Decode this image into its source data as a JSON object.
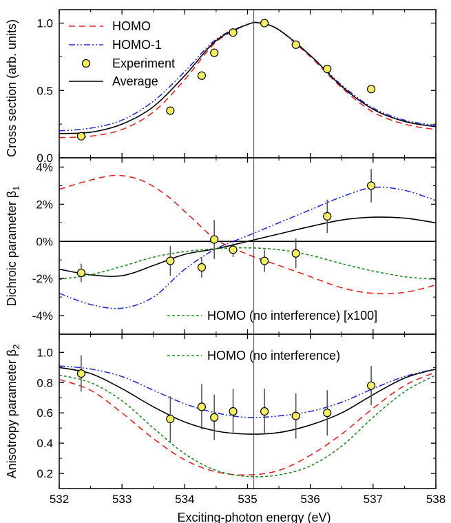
{
  "chart_data": {
    "type": "line",
    "xlabel": "Exciting-photon energy (eV)",
    "x_ticks": [
      "532",
      "533",
      "534",
      "535",
      "536",
      "537",
      "538"
    ],
    "xlim": [
      532,
      538
    ],
    "vline_x": 535.1,
    "panels": [
      {
        "id": "cross-section",
        "ylabel": "Cross section (arb. units)",
        "ylim": [
          0,
          1.1
        ],
        "y_ticks": [
          {
            "v": 0.0,
            "label": "0.0"
          },
          {
            "v": 0.5,
            "label": "0.5"
          },
          {
            "v": 1.0,
            "label": "1.0"
          }
        ],
        "zero_line": false,
        "series": [
          {
            "name": "HOMO",
            "color": "#e8201e",
            "dash": "9,6",
            "x": [
              532,
              532.5,
              533,
              533.5,
              534,
              534.5,
              535,
              535.2,
              535.5,
              536,
              536.5,
              537,
              537.5,
              538
            ],
            "y": [
              0.15,
              0.16,
              0.21,
              0.34,
              0.58,
              0.86,
              0.99,
              1.0,
              0.95,
              0.75,
              0.52,
              0.34,
              0.25,
              0.21
            ]
          },
          {
            "name": "HOMO-1",
            "color": "#1f2ed6",
            "dash": "9,3,2,3,2,3",
            "x": [
              532,
              532.5,
              533,
              533.5,
              534,
              534.5,
              535,
              535.2,
              535.5,
              536,
              536.5,
              537,
              537.5,
              538
            ],
            "y": [
              0.2,
              0.22,
              0.28,
              0.42,
              0.64,
              0.88,
              0.99,
              1.0,
              0.95,
              0.76,
              0.54,
              0.37,
              0.28,
              0.24
            ]
          },
          {
            "name": "Average",
            "color": "#000000",
            "dash": "",
            "x": [
              532,
              532.5,
              533,
              533.5,
              534,
              534.5,
              535,
              535.2,
              535.5,
              536,
              536.5,
              537,
              537.5,
              538
            ],
            "y": [
              0.18,
              0.19,
              0.25,
              0.38,
              0.61,
              0.87,
              0.99,
              1.0,
              0.95,
              0.76,
              0.53,
              0.36,
              0.27,
              0.23
            ]
          }
        ],
        "points": {
          "name": "Experiment",
          "x": [
            532.35,
            533.77,
            534.27,
            534.47,
            534.77,
            535.27,
            535.77,
            536.27,
            536.97
          ],
          "y": [
            0.16,
            0.35,
            0.61,
            0.78,
            0.93,
            1.0,
            0.84,
            0.66,
            0.51
          ],
          "err": []
        }
      },
      {
        "id": "beta1",
        "ylabel": "Dichroic parameter β₁",
        "ylabel_main": "Dichroic parameter β",
        "ylabel_sub": "1",
        "ylim": [
          -5,
          4.5
        ],
        "y_ticks": [
          {
            "v": -4,
            "label": "-4%"
          },
          {
            "v": -2,
            "label": "-2%"
          },
          {
            "v": 0,
            "label": "0%"
          },
          {
            "v": 2,
            "label": "2%"
          },
          {
            "v": 4,
            "label": "4%"
          }
        ],
        "zero_line": true,
        "series": [
          {
            "name": "HOMO",
            "color": "#e8201e",
            "dash": "9,6",
            "x": [
              532,
              532.5,
              532.9,
              533.3,
              533.7,
              534.1,
              534.5,
              535,
              535.5,
              536,
              536.5,
              537,
              537.5,
              538
            ],
            "y": [
              2.8,
              3.3,
              3.55,
              3.3,
              2.5,
              1.3,
              0.1,
              -0.7,
              -1.3,
              -1.9,
              -2.5,
              -2.8,
              -2.75,
              -2.35
            ]
          },
          {
            "name": "HOMO-1",
            "color": "#1f2ed6",
            "dash": "9,3,2,3,2,3",
            "x": [
              532,
              532.5,
              533,
              533.5,
              534,
              534.5,
              535,
              535.5,
              536,
              536.5,
              537,
              537.5,
              538
            ],
            "y": [
              -2.8,
              -3.4,
              -3.6,
              -3.0,
              -1.5,
              -0.4,
              0.3,
              1.0,
              1.7,
              2.4,
              2.9,
              2.75,
              2.2
            ]
          },
          {
            "name": "Average",
            "color": "#000000",
            "dash": "",
            "x": [
              532,
              532.5,
              533,
              533.5,
              534,
              534.5,
              535,
              535.5,
              536,
              536.5,
              537,
              537.5,
              538
            ],
            "y": [
              -1.5,
              -1.8,
              -1.85,
              -1.3,
              -0.7,
              -0.4,
              0.0,
              0.4,
              0.8,
              1.15,
              1.3,
              1.25,
              1.0
            ]
          },
          {
            "name": "HOMO (no interference) [x100]",
            "color": "#1e8c1e",
            "dash": "4,3",
            "x": [
              532,
              532.5,
              533,
              533.5,
              534,
              534.5,
              535,
              535.5,
              536,
              536.5,
              537,
              537.5,
              538
            ],
            "y": [
              -2.05,
              -1.8,
              -1.35,
              -0.85,
              -0.55,
              -0.4,
              -0.35,
              -0.45,
              -0.75,
              -1.2,
              -1.6,
              -1.9,
              -2.05
            ]
          }
        ],
        "points": {
          "name": "Experiment",
          "x": [
            532.35,
            533.77,
            534.27,
            534.47,
            534.77,
            535.27,
            535.77,
            536.27,
            536.97
          ],
          "y": [
            -1.7,
            -1.05,
            -1.4,
            0.1,
            -0.45,
            -1.05,
            -0.65,
            1.35,
            3.0
          ],
          "err": [
            0.5,
            0.8,
            0.55,
            1.05,
            0.4,
            0.6,
            0.8,
            0.9,
            0.9
          ]
        }
      },
      {
        "id": "beta2",
        "ylabel": "Anisotropy parameter β₂",
        "ylabel_main": "Anisotropy parameter β",
        "ylabel_sub": "2",
        "ylim": [
          0.1,
          1.12
        ],
        "y_ticks": [
          {
            "v": 0.2,
            "label": "0.2"
          },
          {
            "v": 0.4,
            "label": "0.4"
          },
          {
            "v": 0.6,
            "label": "0.6"
          },
          {
            "v": 0.8,
            "label": "0.8"
          },
          {
            "v": 1.0,
            "label": "1.0"
          }
        ],
        "zero_line": false,
        "series": [
          {
            "name": "HOMO",
            "color": "#e8201e",
            "dash": "9,6",
            "x": [
              532,
              532.5,
              533,
              533.5,
              534,
              534.5,
              535,
              535.5,
              536,
              536.5,
              537,
              537.5,
              538
            ],
            "y": [
              0.82,
              0.75,
              0.6,
              0.43,
              0.29,
              0.21,
              0.19,
              0.22,
              0.32,
              0.46,
              0.63,
              0.78,
              0.87
            ]
          },
          {
            "name": "HOMO-1",
            "color": "#1f2ed6",
            "dash": "9,3,2,3,2,3",
            "x": [
              532,
              532.5,
              533,
              533.5,
              534,
              534.5,
              535,
              535.5,
              536,
              536.5,
              537,
              537.5,
              538
            ],
            "y": [
              0.91,
              0.89,
              0.84,
              0.75,
              0.66,
              0.6,
              0.57,
              0.58,
              0.61,
              0.67,
              0.76,
              0.84,
              0.89
            ]
          },
          {
            "name": "Average",
            "color": "#000000",
            "dash": "",
            "x": [
              532,
              532.5,
              533,
              533.5,
              534,
              534.5,
              535,
              535.5,
              536,
              536.5,
              537,
              537.5,
              538
            ],
            "y": [
              0.9,
              0.86,
              0.76,
              0.64,
              0.54,
              0.48,
              0.46,
              0.47,
              0.52,
              0.6,
              0.72,
              0.83,
              0.89
            ]
          },
          {
            "name": "HOMO (no interference)",
            "color": "#1e8c1e",
            "dash": "4,3",
            "x": [
              532,
              532.5,
              533,
              533.5,
              534,
              534.5,
              535,
              535.5,
              536,
              536.5,
              537,
              537.5,
              538
            ],
            "y": [
              0.85,
              0.8,
              0.68,
              0.5,
              0.33,
              0.22,
              0.18,
              0.19,
              0.25,
              0.38,
              0.57,
              0.74,
              0.85
            ]
          }
        ],
        "points": {
          "name": "Experiment",
          "x": [
            532.35,
            533.77,
            534.27,
            534.47,
            534.77,
            535.27,
            535.77,
            536.27,
            536.97
          ],
          "y": [
            0.86,
            0.56,
            0.64,
            0.57,
            0.61,
            0.61,
            0.58,
            0.6,
            0.78
          ],
          "err": [
            0.12,
            0.15,
            0.15,
            0.15,
            0.15,
            0.15,
            0.15,
            0.15,
            0.13
          ]
        }
      }
    ],
    "legend_top": [
      "HOMO",
      "HOMO-1",
      "Experiment",
      "Average"
    ],
    "legend_beta1": "HOMO (no interference) [x100]",
    "legend_beta2": "HOMO (no interference)"
  }
}
